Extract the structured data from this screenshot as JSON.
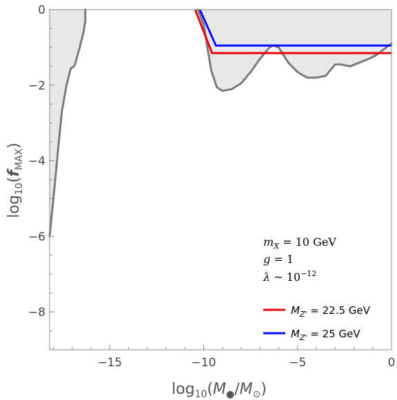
{
  "chart_data": {
    "type": "line",
    "title": "",
    "xlabel": "log10(M●/M⊙)",
    "ylabel": "log10(fMAX)",
    "xlim": [
      -18.2,
      0
    ],
    "ylim": [
      -9,
      0
    ],
    "xticks": [
      -15,
      -10,
      -5,
      0
    ],
    "yticks": [
      0,
      -2,
      -4,
      -6,
      -8
    ],
    "grid": false,
    "legend_position": "bottom-right",
    "annotations": [
      "mX = 10 GeV",
      "g = 1",
      "λ ~ 10−12"
    ],
    "constraint_regions": [
      {
        "side": "left",
        "x": [
          -16.3,
          -16.3,
          -16.4,
          -16.6,
          -16.85,
          -16.9,
          -17.05,
          -17.1,
          -17.3,
          -17.55,
          -17.75,
          -18.0,
          -18.2
        ],
        "y": [
          0,
          -0.3,
          -0.6,
          -1.0,
          -1.45,
          -1.5,
          -1.55,
          -1.6,
          -2.0,
          -2.7,
          -3.7,
          -5.0,
          -6.0
        ]
      },
      {
        "side": "right",
        "x": [
          -10.3,
          -10.0,
          -9.8,
          -9.6,
          -9.3,
          -9.0,
          -8.5,
          -8.0,
          -7.5,
          -7.0,
          -6.5,
          -6.3,
          -6.0,
          -5.5,
          -5.0,
          -4.5,
          -4.0,
          -3.5,
          -3.0,
          -2.7,
          -2.2,
          -1.7,
          -1.2,
          -0.8,
          -0.4,
          0
        ],
        "y": [
          0,
          -0.4,
          -1.0,
          -1.6,
          -2.05,
          -2.15,
          -2.1,
          -1.95,
          -1.65,
          -1.3,
          -1.0,
          -0.95,
          -1.0,
          -1.4,
          -1.65,
          -1.8,
          -1.8,
          -1.75,
          -1.45,
          -1.45,
          -1.5,
          -1.4,
          -1.3,
          -1.2,
          -1.05,
          -0.9
        ]
      }
    ],
    "series": [
      {
        "name": "MZ' = 22.5 GeV",
        "color": "#e8000b",
        "x": [
          -10.45,
          -9.55,
          0
        ],
        "y": [
          0,
          -1.15,
          -1.15
        ]
      },
      {
        "name": "MZ' = 25 GeV",
        "color": "#0a0aff",
        "x": [
          -10.2,
          -9.35,
          0
        ],
        "y": [
          0,
          -0.95,
          -0.95
        ]
      }
    ]
  }
}
